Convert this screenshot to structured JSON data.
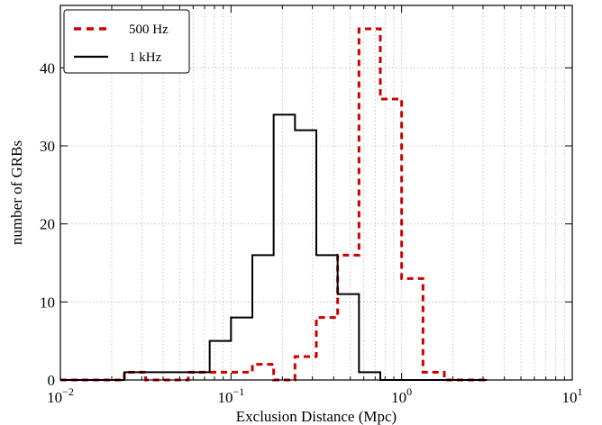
{
  "chart_data": {
    "type": "histogram-step",
    "title": "",
    "xlabel": "Exclusion Distance (Mpc)",
    "ylabel": "number of GRBs",
    "x_scale": "log",
    "xlim": [
      0.01,
      10
    ],
    "ylim": [
      0,
      48
    ],
    "x_ticks": [
      {
        "value": 0.01,
        "base": "10",
        "exp": "−2"
      },
      {
        "value": 0.1,
        "base": "10",
        "exp": "−1"
      },
      {
        "value": 1,
        "base": "10",
        "exp": "0"
      },
      {
        "value": 10,
        "base": "10",
        "exp": "1"
      }
    ],
    "y_ticks": [
      0,
      10,
      20,
      30,
      40
    ],
    "grid": true,
    "legend_position": "top-left",
    "bin_edges": [
      0.01,
      0.01334,
      0.01778,
      0.02371,
      0.03162,
      0.04217,
      0.05623,
      0.07499,
      0.1,
      0.1334,
      0.1778,
      0.2371,
      0.3162,
      0.4217,
      0.5623,
      0.7499,
      1.0,
      1.334,
      1.778,
      2.371,
      3.162
    ],
    "series": [
      {
        "name": "500 Hz",
        "color": "#cc0000",
        "style": "dashed",
        "counts": [
          0,
          0,
          0,
          1,
          0,
          0,
          1,
          1,
          1,
          2,
          0,
          3,
          8,
          16,
          45,
          36,
          13,
          1,
          0,
          0
        ]
      },
      {
        "name": "1 kHz",
        "color": "#000000",
        "style": "solid",
        "counts": [
          0,
          0,
          0,
          1,
          1,
          1,
          1,
          5,
          8,
          16,
          34,
          32,
          16,
          11,
          1,
          0,
          0,
          0,
          0,
          0
        ]
      }
    ]
  }
}
